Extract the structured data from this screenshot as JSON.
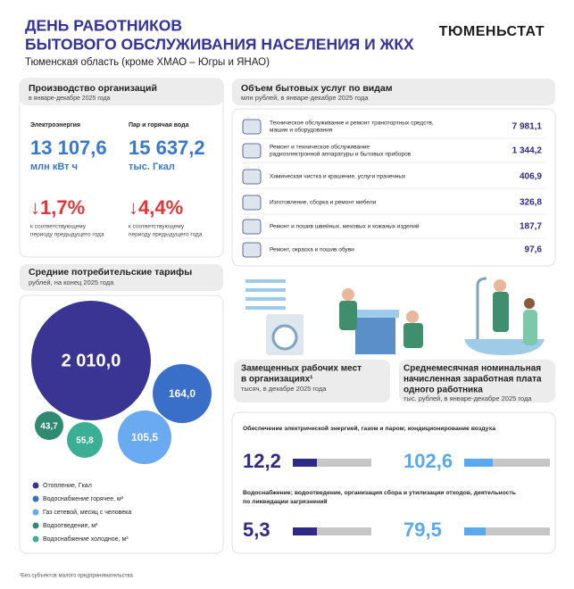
{
  "header": {
    "title": [
      "ДЕНЬ РАБОТНИКОВ",
      "БЫТОВОГО ОБСЛУЖИВАНИЯ НАСЕЛЕНИЯ И ЖКХ"
    ],
    "subtitle": "Тюменская область (кроме ХМАО – Югры и ЯНАО)",
    "brand": "ТЮМЕНЬСТАТ"
  },
  "production": {
    "title": "Производство организаций",
    "subtitle": "в январе-декабре 2025 года",
    "items": [
      {
        "label": "Электроэнергия",
        "value": "13 107,6",
        "unit": "млн кВт ч",
        "change": "↓1,7%",
        "note": [
          "к соответствующему",
          "периоду предыдущего года"
        ]
      },
      {
        "label": "Пар и горячая вода",
        "value": "15 637,2",
        "unit": "тыс. Гкал",
        "change": "↓4,4%",
        "note": [
          "к соответствующему",
          "периоду предыдущего года"
        ]
      }
    ]
  },
  "tariffs": {
    "title": "Средние потребительские тарифы",
    "subtitle": "рублей, на конец 2025 года",
    "items": [
      {
        "label": "Отопление, Гкал",
        "value": "2 010,0",
        "color": "#3a3593"
      },
      {
        "label": "Водоснабжение горячее, м³",
        "value": "164,0",
        "color": "#3a6fc9"
      },
      {
        "label": "Газ сетевой, месяц с человека",
        "value": "105,5",
        "color": "#6aaaf0"
      },
      {
        "label": "Водоотведение, м³",
        "value": "43,7",
        "color": "#2f8a72"
      },
      {
        "label": "Водоснабжение холодное, м³",
        "value": "55,8",
        "color": "#3aaf94"
      }
    ]
  },
  "services": {
    "title": "Объем бытовых услуг по видам",
    "subtitle": "млн рублей, в январе-декабре 2025 года",
    "rows": [
      {
        "label": [
          "Техническое обслуживание и ремонт транспортных средств,",
          "машин и оборудования"
        ],
        "value": "7 981,1"
      },
      {
        "label": [
          "Ремонт и техническое обслуживание",
          "радиоэлектронной аппаратуры и бытовых приборов"
        ],
        "value": "1 344,2"
      },
      {
        "label": [
          "Химическая чистка и крашение, услуги прачечных"
        ],
        "value": "406,9"
      },
      {
        "label": [
          "Изготовление, сборка и ремонт мебели"
        ],
        "value": "326,8"
      },
      {
        "label": [
          "Ремонт и пошив швейных, меховых и кожаных изделий"
        ],
        "value": "187,7"
      },
      {
        "label": [
          "Ремонт, окраска и пошив обуви"
        ],
        "value": "97,6"
      }
    ]
  },
  "jobs": {
    "title": [
      "Замещенных рабочих мест",
      "в организациях¹"
    ],
    "subtitle": "тысяч, в декабре 2025 года"
  },
  "wage": {
    "title": [
      "Среднемесячная номинальная",
      "начисленная заработная плата",
      "одного работника"
    ],
    "subtitle": "тыс. рублей, в январе-декабре 2025 года"
  },
  "sectors": [
    {
      "title": [
        "Обеспечение электрической энергией, газом и паром; кондиционирование воздуха"
      ],
      "jobs": "12,2",
      "wage": "102,6"
    },
    {
      "title": [
        "Водоснабжение; водоотведение, организация сбора и утилизации отходов, деятельность",
        "по ликвидации загрязнений"
      ],
      "jobs": "5,3",
      "wage": "79,5"
    }
  ],
  "footnote": "¹Без субъектов малого предпринимательства"
}
